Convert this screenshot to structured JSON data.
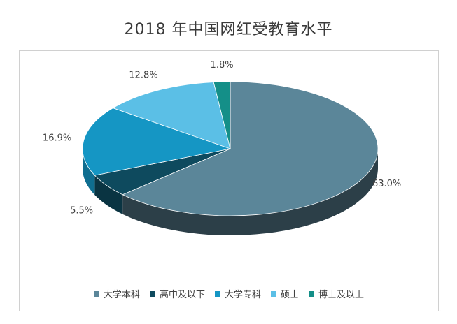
{
  "chart_data": {
    "type": "pie",
    "title": "2018 年中国网红受教育水平",
    "categories": [
      "大学本科",
      "高中及以下",
      "大学专科",
      "硕士",
      "博士及以上"
    ],
    "values": [
      63.0,
      5.5,
      16.9,
      12.8,
      1.8
    ],
    "labels": [
      "63.0%",
      "5.5%",
      "16.9%",
      "12.8%",
      "1.8%"
    ],
    "colors": [
      "#5b8699",
      "#0e4a5e",
      "#1596c4",
      "#5bbfe6",
      "#148f88"
    ],
    "side_colors": [
      "#2c3f48",
      "#0a3442",
      "#0f6e90",
      "#3f92b2",
      "#0e6964"
    ],
    "style": "3d",
    "legend_position": "bottom"
  }
}
